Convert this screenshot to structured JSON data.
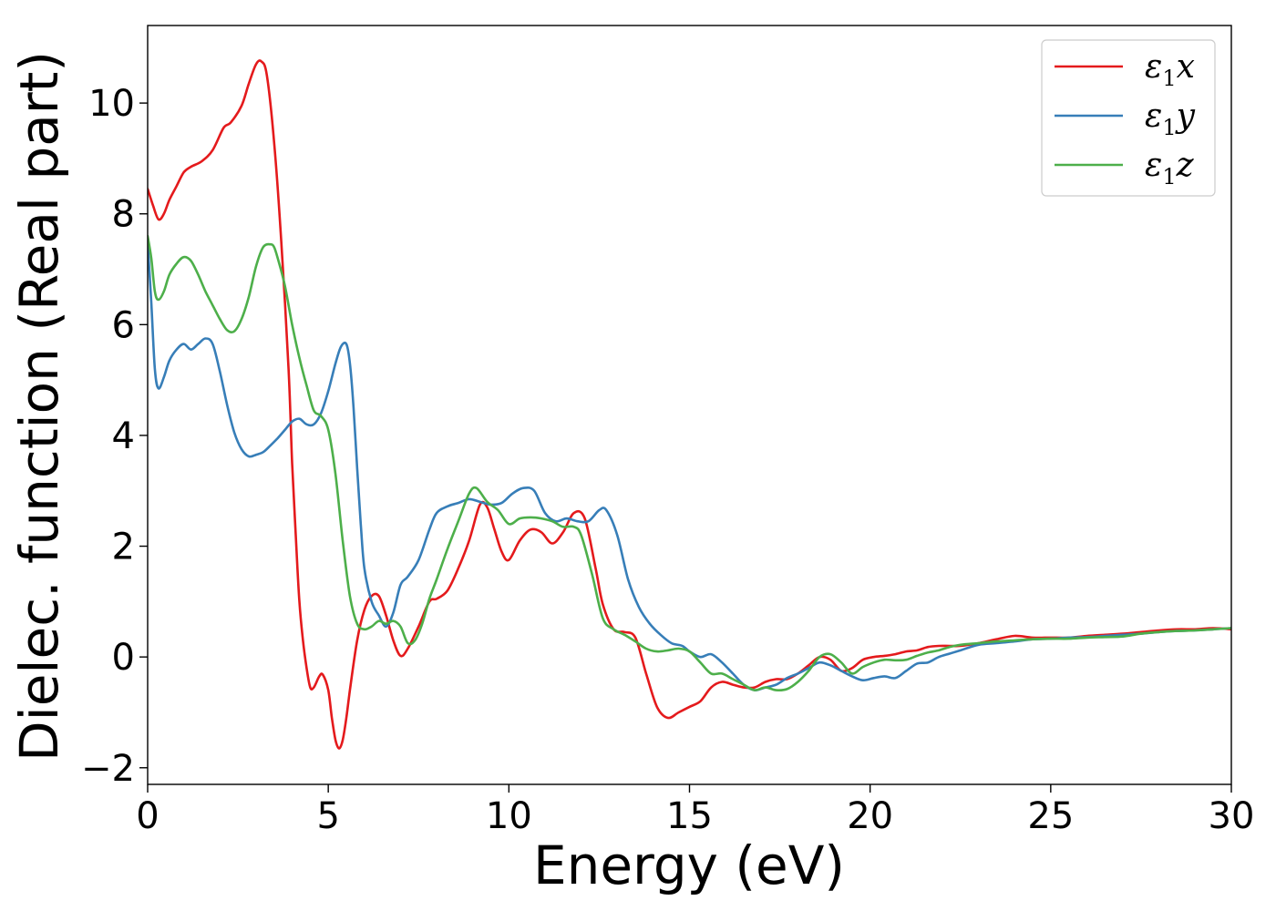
{
  "chart_data": {
    "type": "line",
    "xlabel": "Energy (eV)",
    "ylabel": "Dielec. function (Real part)",
    "xlim": [
      0,
      30
    ],
    "ylim": [
      -2.3,
      11.4
    ],
    "xticks": [
      0,
      5,
      10,
      15,
      20,
      25,
      30
    ],
    "yticks": [
      -2,
      0,
      2,
      4,
      6,
      8,
      10
    ],
    "xtick_labels": [
      "0",
      "5",
      "10",
      "15",
      "20",
      "25",
      "30"
    ],
    "ytick_labels": [
      "−2",
      "0",
      "2",
      "4",
      "6",
      "8",
      "10"
    ],
    "grid": false,
    "legend_position": "top-right",
    "series": [
      {
        "name": "ε",
        "sub": "1",
        "suffix": "x",
        "color": "#e41a1c",
        "x": [
          0,
          0.15,
          0.3,
          0.45,
          0.6,
          0.8,
          1.0,
          1.2,
          1.5,
          1.8,
          2.1,
          2.3,
          2.6,
          2.8,
          3.0,
          3.15,
          3.3,
          3.5,
          3.7,
          3.9,
          4.0,
          4.1,
          4.2,
          4.3,
          4.4,
          4.5,
          4.6,
          4.75,
          4.85,
          5.0,
          5.1,
          5.2,
          5.3,
          5.4,
          5.5,
          5.6,
          5.8,
          6.0,
          6.2,
          6.4,
          6.6,
          6.8,
          7.0,
          7.2,
          7.5,
          7.8,
          8.0,
          8.3,
          8.6,
          8.9,
          9.2,
          9.4,
          9.6,
          9.8,
          10.0,
          10.3,
          10.6,
          10.9,
          11.2,
          11.5,
          11.8,
          12.1,
          12.4,
          12.6,
          12.9,
          13.2,
          13.5,
          13.8,
          14.1,
          14.4,
          14.7,
          15.0,
          15.3,
          15.6,
          15.9,
          16.2,
          16.5,
          16.8,
          17.1,
          17.4,
          17.7,
          18.0,
          18.3,
          18.6,
          18.9,
          19.2,
          19.5,
          19.8,
          20.1,
          20.4,
          20.7,
          21.0,
          21.3,
          21.6,
          21.9,
          22.2,
          22.5,
          23.0,
          23.5,
          24.0,
          24.5,
          25.0,
          25.5,
          26.0,
          26.5,
          27.0,
          27.5,
          28.0,
          28.5,
          29.0,
          29.5,
          30.0
        ],
        "y": [
          8.45,
          8.15,
          7.9,
          8.0,
          8.25,
          8.5,
          8.75,
          8.85,
          8.95,
          9.15,
          9.55,
          9.65,
          9.95,
          10.35,
          10.7,
          10.75,
          10.5,
          9.3,
          7.5,
          5.2,
          3.5,
          2.2,
          1.0,
          0.3,
          -0.2,
          -0.55,
          -0.55,
          -0.35,
          -0.32,
          -0.6,
          -1.1,
          -1.5,
          -1.65,
          -1.5,
          -1.1,
          -0.6,
          0.3,
          0.85,
          1.1,
          1.1,
          0.75,
          0.3,
          0.02,
          0.15,
          0.55,
          1.0,
          1.05,
          1.2,
          1.6,
          2.1,
          2.75,
          2.7,
          2.3,
          1.9,
          1.75,
          2.1,
          2.3,
          2.25,
          2.05,
          2.25,
          2.6,
          2.5,
          1.6,
          0.95,
          0.5,
          0.45,
          0.35,
          -0.3,
          -0.9,
          -1.1,
          -1.0,
          -0.9,
          -0.8,
          -0.55,
          -0.45,
          -0.5,
          -0.55,
          -0.55,
          -0.45,
          -0.4,
          -0.4,
          -0.3,
          -0.15,
          0.0,
          -0.05,
          -0.25,
          -0.2,
          -0.05,
          0.0,
          0.02,
          0.05,
          0.1,
          0.12,
          0.18,
          0.2,
          0.2,
          0.2,
          0.25,
          0.32,
          0.38,
          0.35,
          0.35,
          0.35,
          0.38,
          0.4,
          0.42,
          0.45,
          0.48,
          0.5,
          0.5,
          0.52,
          0.5
        ]
      },
      {
        "name": "ε",
        "sub": "1",
        "suffix": "y",
        "color": "#377eb8",
        "x": [
          0,
          0.1,
          0.2,
          0.3,
          0.45,
          0.6,
          0.8,
          1.0,
          1.2,
          1.4,
          1.6,
          1.8,
          2.0,
          2.2,
          2.4,
          2.6,
          2.8,
          3.0,
          3.2,
          3.4,
          3.6,
          3.8,
          4.0,
          4.2,
          4.4,
          4.6,
          4.8,
          5.0,
          5.2,
          5.35,
          5.5,
          5.6,
          5.7,
          5.8,
          5.9,
          6.0,
          6.2,
          6.4,
          6.6,
          6.8,
          7.0,
          7.2,
          7.5,
          7.8,
          8.0,
          8.3,
          8.6,
          8.9,
          9.2,
          9.5,
          9.8,
          10.1,
          10.4,
          10.7,
          11.0,
          11.3,
          11.6,
          11.9,
          12.2,
          12.5,
          12.7,
          13.0,
          13.3,
          13.6,
          13.9,
          14.2,
          14.5,
          14.8,
          15.0,
          15.3,
          15.6,
          15.9,
          16.2,
          16.5,
          16.8,
          17.1,
          17.4,
          17.7,
          18.0,
          18.3,
          18.6,
          18.9,
          19.2,
          19.5,
          19.8,
          20.1,
          20.4,
          20.7,
          21.0,
          21.3,
          21.6,
          21.9,
          22.2,
          22.5,
          23.0,
          23.5,
          24.0,
          24.5,
          25.0,
          25.5,
          26.0,
          26.5,
          27.0,
          27.5,
          28.0,
          28.5,
          29.0,
          29.5,
          30.0
        ],
        "y": [
          7.5,
          6.4,
          5.2,
          4.85,
          5.05,
          5.35,
          5.55,
          5.65,
          5.55,
          5.65,
          5.75,
          5.65,
          5.15,
          4.55,
          4.05,
          3.75,
          3.62,
          3.65,
          3.7,
          3.82,
          3.95,
          4.1,
          4.25,
          4.3,
          4.2,
          4.2,
          4.4,
          4.8,
          5.3,
          5.6,
          5.65,
          5.3,
          4.5,
          3.4,
          2.4,
          1.6,
          1.0,
          0.75,
          0.55,
          0.8,
          1.3,
          1.45,
          1.75,
          2.3,
          2.6,
          2.72,
          2.78,
          2.85,
          2.8,
          2.75,
          2.78,
          2.95,
          3.05,
          3.0,
          2.6,
          2.45,
          2.5,
          2.45,
          2.45,
          2.65,
          2.65,
          2.2,
          1.4,
          0.9,
          0.6,
          0.4,
          0.25,
          0.2,
          0.1,
          0.0,
          0.05,
          -0.1,
          -0.3,
          -0.5,
          -0.6,
          -0.55,
          -0.5,
          -0.38,
          -0.3,
          -0.2,
          -0.1,
          -0.15,
          -0.25,
          -0.35,
          -0.42,
          -0.38,
          -0.35,
          -0.38,
          -0.25,
          -0.12,
          -0.1,
          0.0,
          0.06,
          0.12,
          0.22,
          0.25,
          0.28,
          0.32,
          0.33,
          0.35,
          0.36,
          0.38,
          0.4,
          0.42,
          0.45,
          0.47,
          0.48,
          0.5,
          0.52
        ]
      },
      {
        "name": "ε",
        "sub": "1",
        "suffix": "z",
        "color": "#4daf4a",
        "x": [
          0,
          0.1,
          0.2,
          0.3,
          0.45,
          0.6,
          0.8,
          1.0,
          1.2,
          1.4,
          1.6,
          1.8,
          2.0,
          2.2,
          2.4,
          2.6,
          2.8,
          3.0,
          3.2,
          3.4,
          3.5,
          3.6,
          3.8,
          4.0,
          4.2,
          4.4,
          4.6,
          4.8,
          5.0,
          5.2,
          5.4,
          5.6,
          5.8,
          6.0,
          6.2,
          6.4,
          6.6,
          6.8,
          7.0,
          7.2,
          7.4,
          7.6,
          7.8,
          8.0,
          8.3,
          8.6,
          8.9,
          9.1,
          9.4,
          9.7,
          10.0,
          10.3,
          10.6,
          10.9,
          11.2,
          11.5,
          11.8,
          12.0,
          12.3,
          12.6,
          12.9,
          13.2,
          13.5,
          13.8,
          14.1,
          14.4,
          14.7,
          15.0,
          15.3,
          15.6,
          15.9,
          16.2,
          16.5,
          16.8,
          17.1,
          17.4,
          17.7,
          18.0,
          18.3,
          18.6,
          18.9,
          19.2,
          19.5,
          19.8,
          20.1,
          20.4,
          20.7,
          21.0,
          21.3,
          21.6,
          21.9,
          22.2,
          22.5,
          23.0,
          23.5,
          24.0,
          24.5,
          25.0,
          25.5,
          26.0,
          26.5,
          27.0,
          27.5,
          28.0,
          28.5,
          29.0,
          29.5,
          30.0
        ],
        "y": [
          7.6,
          7.2,
          6.6,
          6.45,
          6.6,
          6.9,
          7.1,
          7.22,
          7.15,
          6.9,
          6.6,
          6.35,
          6.1,
          5.9,
          5.88,
          6.1,
          6.5,
          7.05,
          7.4,
          7.45,
          7.4,
          7.2,
          6.7,
          6.0,
          5.4,
          4.9,
          4.45,
          4.35,
          4.1,
          3.3,
          2.1,
          1.1,
          0.6,
          0.5,
          0.55,
          0.65,
          0.6,
          0.65,
          0.55,
          0.25,
          0.3,
          0.6,
          1.05,
          1.4,
          1.95,
          2.45,
          2.95,
          3.05,
          2.8,
          2.65,
          2.4,
          2.5,
          2.52,
          2.5,
          2.45,
          2.35,
          2.35,
          2.2,
          1.5,
          0.7,
          0.5,
          0.4,
          0.28,
          0.15,
          0.1,
          0.12,
          0.15,
          0.1,
          -0.1,
          -0.3,
          -0.3,
          -0.4,
          -0.5,
          -0.6,
          -0.55,
          -0.6,
          -0.58,
          -0.45,
          -0.25,
          0.0,
          0.05,
          -0.1,
          -0.3,
          -0.18,
          -0.1,
          -0.05,
          -0.06,
          -0.05,
          0.02,
          0.08,
          0.12,
          0.18,
          0.22,
          0.25,
          0.28,
          0.3,
          0.32,
          0.33,
          0.33,
          0.35,
          0.36,
          0.37,
          0.42,
          0.45,
          0.47,
          0.48,
          0.5,
          0.52
        ]
      }
    ]
  }
}
